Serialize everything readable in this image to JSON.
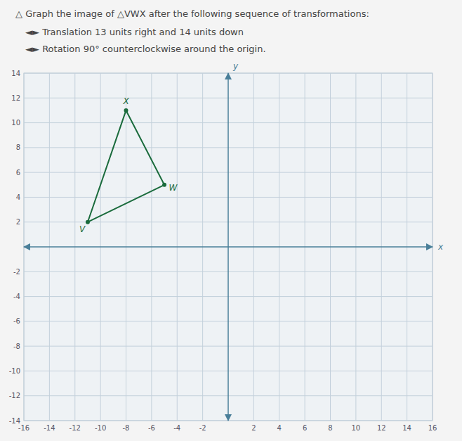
{
  "chart_data": {
    "type": "polygon",
    "title": "△  Graph the image of △VWX after the following sequence of transformations:",
    "subtitle": [
      "◄►  Translation 13 units right and 14 units down",
      "◄►  Rotation 90° counterclockwise around the origin."
    ],
    "xlabel": "x",
    "ylabel": "y",
    "series": [
      {
        "x": [
          -11,
          -8,
          -5
        ],
        "values": [
          2,
          11,
          5
        ],
        "point_labels": [
          "V",
          "X",
          "W"
        ],
        "color": "#1a6b3c",
        "marker": "circle"
      }
    ],
    "xlim": [
      -16,
      16
    ],
    "ylim": [
      -14,
      14
    ],
    "xticks": [
      -16,
      -14,
      -12,
      -10,
      -8,
      -6,
      -4,
      -2,
      2,
      4,
      6,
      8,
      10,
      12,
      14,
      16
    ],
    "yticks": [
      -14,
      -12,
      -10,
      -8,
      -6,
      -4,
      -2,
      2,
      4,
      6,
      8,
      10,
      12,
      14
    ],
    "grid": true
  }
}
